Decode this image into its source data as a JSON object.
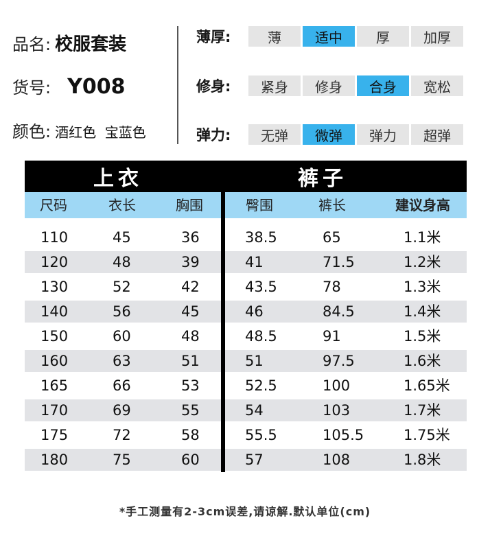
{
  "product": {
    "name_label": "品名:",
    "name_value": "校服套装",
    "sku_label": "货号:",
    "sku_value": "Y008",
    "color_label": "颜色:",
    "color_value": "酒红色  宝蓝色"
  },
  "attributes": [
    {
      "label": "薄厚:",
      "options": [
        "薄",
        "适中",
        "厚",
        "加厚"
      ],
      "selected": 1
    },
    {
      "label": "修身:",
      "options": [
        "紧身",
        "修身",
        "合身",
        "宽松"
      ],
      "selected": 2
    },
    {
      "label": "弹力:",
      "options": [
        "无弹",
        "微弹",
        "弹力",
        "超弹"
      ],
      "selected": 1
    }
  ],
  "table": {
    "top_title": "上衣",
    "pants_title": "裤子",
    "headers": [
      "尺码",
      "衣长",
      "胸围",
      "臀围",
      "裤长",
      "建议身高"
    ],
    "rows": [
      [
        "110",
        "45",
        "36",
        "38.5",
        "65",
        "1.1米"
      ],
      [
        "120",
        "48",
        "39",
        "41",
        "71.5",
        "1.2米"
      ],
      [
        "130",
        "52",
        "42",
        "43.5",
        "78",
        "1.3米"
      ],
      [
        "140",
        "56",
        "45",
        "46",
        "84.5",
        "1.4米"
      ],
      [
        "150",
        "60",
        "48",
        "48.5",
        "91",
        "1.5米"
      ],
      [
        "160",
        "63",
        "51",
        "51",
        "97.5",
        "1.6米"
      ],
      [
        "165",
        "66",
        "53",
        "52.5",
        "100",
        "1.65米"
      ],
      [
        "170",
        "69",
        "55",
        "54",
        "103",
        "1.7米"
      ],
      [
        "175",
        "72",
        "58",
        "55.5",
        "105.5",
        "1.75米"
      ],
      [
        "180",
        "75",
        "60",
        "57",
        "108",
        "1.8米"
      ]
    ]
  },
  "note": "*手工测量有2-3cm误差,请谅解.默认单位(cm)",
  "colors": {
    "selected_chip": "#38b2ec",
    "chip": "#e5e5e5",
    "subheader": "#9fd8f5",
    "alt_row": "#e2e3e6"
  }
}
